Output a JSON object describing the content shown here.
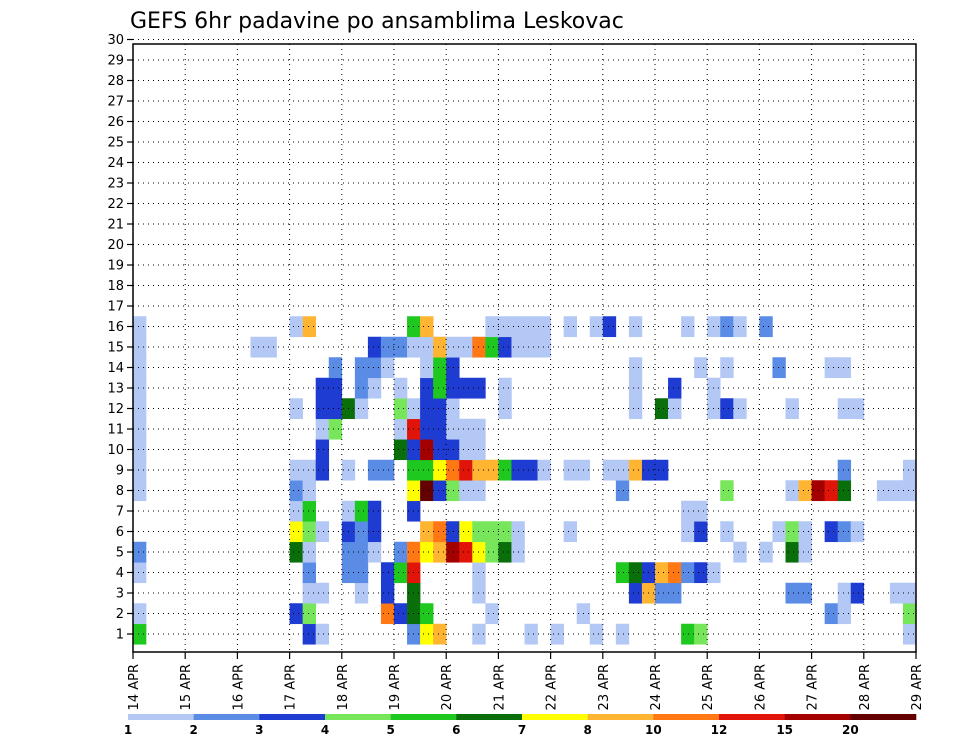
{
  "chart_data": {
    "type": "heatmap",
    "title": "GEFS 6hr padavine po ansamblima Leskovac",
    "xlabel": "",
    "ylabel": "",
    "x_tick_labels": [
      "14 APR",
      "15 APR",
      "16 APR",
      "17 APR",
      "18 APR",
      "19 APR",
      "20 APR",
      "21 APR",
      "22 APR",
      "23 APR",
      "24 APR",
      "25 APR",
      "26 APR",
      "27 APR",
      "28 APR",
      "29 APR"
    ],
    "y_tick_labels": [
      "1",
      "2",
      "3",
      "4",
      "5",
      "6",
      "7",
      "8",
      "9",
      "10",
      "11",
      "12",
      "13",
      "14",
      "15",
      "16",
      "17",
      "18",
      "19",
      "20",
      "21",
      "22",
      "23",
      "24",
      "25",
      "26",
      "27",
      "28",
      "29",
      "30"
    ],
    "members": 30,
    "time_steps_per_day": 4,
    "days": 15,
    "grid": true,
    "legend": "bottom",
    "colorbar_levels": [
      "1",
      "2",
      "3",
      "4",
      "5",
      "6",
      "7",
      "8",
      "10",
      "12",
      "15",
      "20"
    ],
    "colorbar_colors": [
      "#b4c8f5",
      "#5a8ce6",
      "#1e3cd2",
      "#78e65a",
      "#1ec81e",
      "#0a6e0a",
      "#ffff00",
      "#ffb432",
      "#ff7814",
      "#e1140a",
      "#a50000",
      "#640000"
    ],
    "cells": [
      {
        "m": 1,
        "t": 0,
        "c": 4
      },
      {
        "m": 1,
        "t": 13,
        "c": 2
      },
      {
        "m": 1,
        "t": 14,
        "c": 0
      },
      {
        "m": 1,
        "t": 21,
        "c": 1
      },
      {
        "m": 1,
        "t": 22,
        "c": 6
      },
      {
        "m": 1,
        "t": 23,
        "c": 7
      },
      {
        "m": 1,
        "t": 26,
        "c": 0
      },
      {
        "m": 1,
        "t": 30,
        "c": 0
      },
      {
        "m": 1,
        "t": 32,
        "c": 0
      },
      {
        "m": 1,
        "t": 35,
        "c": 0
      },
      {
        "m": 1,
        "t": 37,
        "c": 0
      },
      {
        "m": 1,
        "t": 42,
        "c": 4
      },
      {
        "m": 1,
        "t": 43,
        "c": 3
      },
      {
        "m": 1,
        "t": 59,
        "c": 0
      },
      {
        "m": 2,
        "t": 0,
        "c": 0
      },
      {
        "m": 2,
        "t": 12,
        "c": 2
      },
      {
        "m": 2,
        "t": 13,
        "c": 3
      },
      {
        "m": 2,
        "t": 19,
        "c": 8
      },
      {
        "m": 2,
        "t": 20,
        "c": 2
      },
      {
        "m": 2,
        "t": 21,
        "c": 5
      },
      {
        "m": 2,
        "t": 22,
        "c": 4
      },
      {
        "m": 2,
        "t": 27,
        "c": 0
      },
      {
        "m": 2,
        "t": 34,
        "c": 0
      },
      {
        "m": 2,
        "t": 53,
        "c": 1
      },
      {
        "m": 2,
        "t": 54,
        "c": 0
      },
      {
        "m": 2,
        "t": 59,
        "c": 3
      },
      {
        "m": 3,
        "t": 13,
        "c": 0
      },
      {
        "m": 3,
        "t": 14,
        "c": 0
      },
      {
        "m": 3,
        "t": 17,
        "c": 0
      },
      {
        "m": 3,
        "t": 19,
        "c": 2
      },
      {
        "m": 3,
        "t": 21,
        "c": 5
      },
      {
        "m": 3,
        "t": 26,
        "c": 0
      },
      {
        "m": 3,
        "t": 38,
        "c": 2
      },
      {
        "m": 3,
        "t": 39,
        "c": 7
      },
      {
        "m": 3,
        "t": 40,
        "c": 1
      },
      {
        "m": 3,
        "t": 41,
        "c": 1
      },
      {
        "m": 3,
        "t": 50,
        "c": 1
      },
      {
        "m": 3,
        "t": 51,
        "c": 1
      },
      {
        "m": 3,
        "t": 54,
        "c": 0
      },
      {
        "m": 3,
        "t": 55,
        "c": 2
      },
      {
        "m": 3,
        "t": 58,
        "c": 0
      },
      {
        "m": 3,
        "t": 59,
        "c": 0
      },
      {
        "m": 4,
        "t": 0,
        "c": 0
      },
      {
        "m": 4,
        "t": 13,
        "c": 1
      },
      {
        "m": 4,
        "t": 16,
        "c": 1
      },
      {
        "m": 4,
        "t": 17,
        "c": 1
      },
      {
        "m": 4,
        "t": 19,
        "c": 2
      },
      {
        "m": 4,
        "t": 20,
        "c": 4
      },
      {
        "m": 4,
        "t": 21,
        "c": 9
      },
      {
        "m": 4,
        "t": 26,
        "c": 0
      },
      {
        "m": 4,
        "t": 37,
        "c": 4
      },
      {
        "m": 4,
        "t": 38,
        "c": 5
      },
      {
        "m": 4,
        "t": 39,
        "c": 2
      },
      {
        "m": 4,
        "t": 40,
        "c": 7
      },
      {
        "m": 4,
        "t": 41,
        "c": 8
      },
      {
        "m": 4,
        "t": 42,
        "c": 1
      },
      {
        "m": 4,
        "t": 43,
        "c": 2
      },
      {
        "m": 4,
        "t": 44,
        "c": 0
      },
      {
        "m": 5,
        "t": 0,
        "c": 1
      },
      {
        "m": 5,
        "t": 12,
        "c": 5
      },
      {
        "m": 5,
        "t": 13,
        "c": 0
      },
      {
        "m": 5,
        "t": 16,
        "c": 1
      },
      {
        "m": 5,
        "t": 17,
        "c": 1
      },
      {
        "m": 5,
        "t": 18,
        "c": 0
      },
      {
        "m": 5,
        "t": 20,
        "c": 1
      },
      {
        "m": 5,
        "t": 21,
        "c": 8
      },
      {
        "m": 5,
        "t": 22,
        "c": 6
      },
      {
        "m": 5,
        "t": 23,
        "c": 7
      },
      {
        "m": 5,
        "t": 24,
        "c": 10
      },
      {
        "m": 5,
        "t": 25,
        "c": 9
      },
      {
        "m": 5,
        "t": 26,
        "c": 6
      },
      {
        "m": 5,
        "t": 27,
        "c": 3
      },
      {
        "m": 5,
        "t": 28,
        "c": 5
      },
      {
        "m": 5,
        "t": 29,
        "c": 0
      },
      {
        "m": 5,
        "t": 46,
        "c": 0
      },
      {
        "m": 5,
        "t": 48,
        "c": 0
      },
      {
        "m": 5,
        "t": 50,
        "c": 5
      },
      {
        "m": 5,
        "t": 51,
        "c": 0
      },
      {
        "m": 6,
        "t": 12,
        "c": 6
      },
      {
        "m": 6,
        "t": 13,
        "c": 3
      },
      {
        "m": 6,
        "t": 14,
        "c": 0
      },
      {
        "m": 6,
        "t": 16,
        "c": 2
      },
      {
        "m": 6,
        "t": 17,
        "c": 1
      },
      {
        "m": 6,
        "t": 18,
        "c": 2
      },
      {
        "m": 6,
        "t": 22,
        "c": 7
      },
      {
        "m": 6,
        "t": 23,
        "c": 8
      },
      {
        "m": 6,
        "t": 24,
        "c": 2
      },
      {
        "m": 6,
        "t": 25,
        "c": 6
      },
      {
        "m": 6,
        "t": 26,
        "c": 3
      },
      {
        "m": 6,
        "t": 27,
        "c": 3
      },
      {
        "m": 6,
        "t": 28,
        "c": 3
      },
      {
        "m": 6,
        "t": 29,
        "c": 0
      },
      {
        "m": 6,
        "t": 33,
        "c": 0
      },
      {
        "m": 6,
        "t": 42,
        "c": 0
      },
      {
        "m": 6,
        "t": 43,
        "c": 2
      },
      {
        "m": 6,
        "t": 45,
        "c": 0
      },
      {
        "m": 6,
        "t": 49,
        "c": 0
      },
      {
        "m": 6,
        "t": 50,
        "c": 3
      },
      {
        "m": 6,
        "t": 51,
        "c": 0
      },
      {
        "m": 6,
        "t": 53,
        "c": 2
      },
      {
        "m": 6,
        "t": 54,
        "c": 1
      },
      {
        "m": 6,
        "t": 55,
        "c": 0
      },
      {
        "m": 7,
        "t": 12,
        "c": 0
      },
      {
        "m": 7,
        "t": 13,
        "c": 4
      },
      {
        "m": 7,
        "t": 16,
        "c": 0
      },
      {
        "m": 7,
        "t": 17,
        "c": 4
      },
      {
        "m": 7,
        "t": 18,
        "c": 2
      },
      {
        "m": 7,
        "t": 21,
        "c": 2
      },
      {
        "m": 7,
        "t": 42,
        "c": 0
      },
      {
        "m": 7,
        "t": 43,
        "c": 0
      },
      {
        "m": 8,
        "t": 0,
        "c": 0
      },
      {
        "m": 8,
        "t": 12,
        "c": 1
      },
      {
        "m": 8,
        "t": 13,
        "c": 0
      },
      {
        "m": 8,
        "t": 21,
        "c": 6
      },
      {
        "m": 8,
        "t": 22,
        "c": 11
      },
      {
        "m": 8,
        "t": 23,
        "c": 2
      },
      {
        "m": 8,
        "t": 24,
        "c": 3
      },
      {
        "m": 8,
        "t": 25,
        "c": 0
      },
      {
        "m": 8,
        "t": 26,
        "c": 0
      },
      {
        "m": 8,
        "t": 37,
        "c": 1
      },
      {
        "m": 8,
        "t": 45,
        "c": 3
      },
      {
        "m": 8,
        "t": 50,
        "c": 0
      },
      {
        "m": 8,
        "t": 51,
        "c": 7
      },
      {
        "m": 8,
        "t": 52,
        "c": 10
      },
      {
        "m": 8,
        "t": 53,
        "c": 9
      },
      {
        "m": 8,
        "t": 54,
        "c": 5
      },
      {
        "m": 8,
        "t": 57,
        "c": 0
      },
      {
        "m": 8,
        "t": 58,
        "c": 0
      },
      {
        "m": 8,
        "t": 59,
        "c": 0
      },
      {
        "m": 9,
        "t": 0,
        "c": 0
      },
      {
        "m": 9,
        "t": 12,
        "c": 0
      },
      {
        "m": 9,
        "t": 13,
        "c": 0
      },
      {
        "m": 9,
        "t": 14,
        "c": 2
      },
      {
        "m": 9,
        "t": 16,
        "c": 0
      },
      {
        "m": 9,
        "t": 18,
        "c": 1
      },
      {
        "m": 9,
        "t": 19,
        "c": 1
      },
      {
        "m": 9,
        "t": 21,
        "c": 4
      },
      {
        "m": 9,
        "t": 22,
        "c": 4
      },
      {
        "m": 9,
        "t": 23,
        "c": 6
      },
      {
        "m": 9,
        "t": 24,
        "c": 8
      },
      {
        "m": 9,
        "t": 25,
        "c": 9
      },
      {
        "m": 9,
        "t": 26,
        "c": 7
      },
      {
        "m": 9,
        "t": 27,
        "c": 7
      },
      {
        "m": 9,
        "t": 28,
        "c": 4
      },
      {
        "m": 9,
        "t": 29,
        "c": 2
      },
      {
        "m": 9,
        "t": 30,
        "c": 2
      },
      {
        "m": 9,
        "t": 31,
        "c": 0
      },
      {
        "m": 9,
        "t": 33,
        "c": 0
      },
      {
        "m": 9,
        "t": 34,
        "c": 0
      },
      {
        "m": 9,
        "t": 36,
        "c": 0
      },
      {
        "m": 9,
        "t": 37,
        "c": 0
      },
      {
        "m": 9,
        "t": 38,
        "c": 7
      },
      {
        "m": 9,
        "t": 39,
        "c": 2
      },
      {
        "m": 9,
        "t": 40,
        "c": 2
      },
      {
        "m": 9,
        "t": 54,
        "c": 1
      },
      {
        "m": 9,
        "t": 59,
        "c": 0
      },
      {
        "m": 10,
        "t": 0,
        "c": 0
      },
      {
        "m": 10,
        "t": 14,
        "c": 2
      },
      {
        "m": 10,
        "t": 20,
        "c": 5
      },
      {
        "m": 10,
        "t": 21,
        "c": 2
      },
      {
        "m": 10,
        "t": 22,
        "c": 10
      },
      {
        "m": 10,
        "t": 23,
        "c": 2
      },
      {
        "m": 10,
        "t": 24,
        "c": 2
      },
      {
        "m": 10,
        "t": 25,
        "c": 0
      },
      {
        "m": 10,
        "t": 26,
        "c": 0
      },
      {
        "m": 11,
        "t": 0,
        "c": 0
      },
      {
        "m": 11,
        "t": 14,
        "c": 0
      },
      {
        "m": 11,
        "t": 15,
        "c": 3
      },
      {
        "m": 11,
        "t": 20,
        "c": 0
      },
      {
        "m": 11,
        "t": 21,
        "c": 9
      },
      {
        "m": 11,
        "t": 22,
        "c": 2
      },
      {
        "m": 11,
        "t": 23,
        "c": 2
      },
      {
        "m": 11,
        "t": 24,
        "c": 0
      },
      {
        "m": 11,
        "t": 25,
        "c": 0
      },
      {
        "m": 11,
        "t": 26,
        "c": 0
      },
      {
        "m": 12,
        "t": 0,
        "c": 0
      },
      {
        "m": 12,
        "t": 12,
        "c": 0
      },
      {
        "m": 12,
        "t": 14,
        "c": 2
      },
      {
        "m": 12,
        "t": 15,
        "c": 2
      },
      {
        "m": 12,
        "t": 16,
        "c": 5
      },
      {
        "m": 12,
        "t": 17,
        "c": 0
      },
      {
        "m": 12,
        "t": 20,
        "c": 3
      },
      {
        "m": 12,
        "t": 21,
        "c": 0
      },
      {
        "m": 12,
        "t": 22,
        "c": 2
      },
      {
        "m": 12,
        "t": 23,
        "c": 2
      },
      {
        "m": 12,
        "t": 24,
        "c": 0
      },
      {
        "m": 12,
        "t": 28,
        "c": 0
      },
      {
        "m": 12,
        "t": 38,
        "c": 0
      },
      {
        "m": 12,
        "t": 40,
        "c": 5
      },
      {
        "m": 12,
        "t": 41,
        "c": 0
      },
      {
        "m": 12,
        "t": 44,
        "c": 0
      },
      {
        "m": 12,
        "t": 45,
        "c": 2
      },
      {
        "m": 12,
        "t": 46,
        "c": 0
      },
      {
        "m": 12,
        "t": 50,
        "c": 0
      },
      {
        "m": 12,
        "t": 54,
        "c": 0
      },
      {
        "m": 12,
        "t": 55,
        "c": 0
      },
      {
        "m": 13,
        "t": 0,
        "c": 0
      },
      {
        "m": 13,
        "t": 14,
        "c": 2
      },
      {
        "m": 13,
        "t": 15,
        "c": 2
      },
      {
        "m": 13,
        "t": 17,
        "c": 1
      },
      {
        "m": 13,
        "t": 18,
        "c": 0
      },
      {
        "m": 13,
        "t": 20,
        "c": 0
      },
      {
        "m": 13,
        "t": 22,
        "c": 2
      },
      {
        "m": 13,
        "t": 23,
        "c": 4
      },
      {
        "m": 13,
        "t": 24,
        "c": 2
      },
      {
        "m": 13,
        "t": 25,
        "c": 2
      },
      {
        "m": 13,
        "t": 26,
        "c": 2
      },
      {
        "m": 13,
        "t": 28,
        "c": 0
      },
      {
        "m": 13,
        "t": 38,
        "c": 0
      },
      {
        "m": 13,
        "t": 41,
        "c": 2
      },
      {
        "m": 13,
        "t": 44,
        "c": 0
      },
      {
        "m": 14,
        "t": 0,
        "c": 0
      },
      {
        "m": 14,
        "t": 15,
        "c": 1
      },
      {
        "m": 14,
        "t": 17,
        "c": 1
      },
      {
        "m": 14,
        "t": 18,
        "c": 1
      },
      {
        "m": 14,
        "t": 19,
        "c": 0
      },
      {
        "m": 14,
        "t": 22,
        "c": 0
      },
      {
        "m": 14,
        "t": 23,
        "c": 4
      },
      {
        "m": 14,
        "t": 24,
        "c": 2
      },
      {
        "m": 14,
        "t": 38,
        "c": 0
      },
      {
        "m": 14,
        "t": 43,
        "c": 0
      },
      {
        "m": 14,
        "t": 45,
        "c": 0
      },
      {
        "m": 14,
        "t": 49,
        "c": 1
      },
      {
        "m": 14,
        "t": 53,
        "c": 0
      },
      {
        "m": 14,
        "t": 54,
        "c": 0
      },
      {
        "m": 15,
        "t": 0,
        "c": 0
      },
      {
        "m": 15,
        "t": 9,
        "c": 0
      },
      {
        "m": 15,
        "t": 10,
        "c": 0
      },
      {
        "m": 15,
        "t": 18,
        "c": 2
      },
      {
        "m": 15,
        "t": 19,
        "c": 1
      },
      {
        "m": 15,
        "t": 20,
        "c": 1
      },
      {
        "m": 15,
        "t": 21,
        "c": 0
      },
      {
        "m": 15,
        "t": 22,
        "c": 0
      },
      {
        "m": 15,
        "t": 23,
        "c": 7
      },
      {
        "m": 15,
        "t": 24,
        "c": 0
      },
      {
        "m": 15,
        "t": 25,
        "c": 0
      },
      {
        "m": 15,
        "t": 26,
        "c": 8
      },
      {
        "m": 15,
        "t": 27,
        "c": 4
      },
      {
        "m": 15,
        "t": 28,
        "c": 2
      },
      {
        "m": 15,
        "t": 29,
        "c": 0
      },
      {
        "m": 15,
        "t": 30,
        "c": 0
      },
      {
        "m": 15,
        "t": 31,
        "c": 0
      },
      {
        "m": 16,
        "t": 0,
        "c": 0
      },
      {
        "m": 16,
        "t": 12,
        "c": 0
      },
      {
        "m": 16,
        "t": 13,
        "c": 7
      },
      {
        "m": 16,
        "t": 21,
        "c": 4
      },
      {
        "m": 16,
        "t": 22,
        "c": 7
      },
      {
        "m": 16,
        "t": 27,
        "c": 0
      },
      {
        "m": 16,
        "t": 28,
        "c": 0
      },
      {
        "m": 16,
        "t": 29,
        "c": 0
      },
      {
        "m": 16,
        "t": 30,
        "c": 0
      },
      {
        "m": 16,
        "t": 31,
        "c": 0
      },
      {
        "m": 16,
        "t": 33,
        "c": 0
      },
      {
        "m": 16,
        "t": 35,
        "c": 0
      },
      {
        "m": 16,
        "t": 36,
        "c": 2
      },
      {
        "m": 16,
        "t": 38,
        "c": 0
      },
      {
        "m": 16,
        "t": 42,
        "c": 0
      },
      {
        "m": 16,
        "t": 44,
        "c": 0
      },
      {
        "m": 16,
        "t": 45,
        "c": 1
      },
      {
        "m": 16,
        "t": 46,
        "c": 0
      },
      {
        "m": 16,
        "t": 48,
        "c": 1
      }
    ]
  }
}
